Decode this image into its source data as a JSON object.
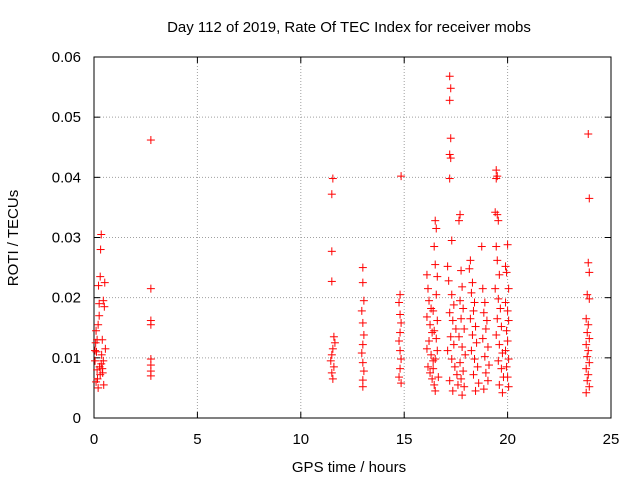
{
  "chart_data": {
    "type": "scatter",
    "title": "Day 112 of 2019, Rate Of TEC Index for receiver mobs",
    "xlabel": "GPS time / hours",
    "ylabel": "ROTI / TECUs",
    "xlim": [
      0,
      25
    ],
    "ylim": [
      0,
      0.06
    ],
    "x_ticks": [
      0,
      5,
      10,
      15,
      20,
      25
    ],
    "y_ticks": [
      0,
      0.01,
      0.02,
      0.03,
      0.04,
      0.05,
      0.06
    ],
    "x_tick_labels": [
      "0",
      "5",
      "10",
      "15",
      "20",
      "25"
    ],
    "y_tick_labels": [
      "0",
      "0.01",
      "0.02",
      "0.03",
      "0.04",
      "0.05",
      "0.06"
    ],
    "grid": true,
    "marker": "+",
    "color": "#ff0000",
    "series": [
      {
        "name": "ROTI",
        "points": [
          [
            0.05,
            0.0095
          ],
          [
            0.08,
            0.0125
          ],
          [
            0.1,
            0.0145
          ],
          [
            0.12,
            0.011
          ],
          [
            0.15,
            0.008
          ],
          [
            0.17,
            0.0065
          ],
          [
            0.2,
            0.0155
          ],
          [
            0.22,
            0.022
          ],
          [
            0.25,
            0.019
          ],
          [
            0.27,
            0.0085
          ],
          [
            0.3,
            0.0235
          ],
          [
            0.32,
            0.028
          ],
          [
            0.35,
            0.0305
          ],
          [
            0.37,
            0.0105
          ],
          [
            0.4,
            0.013
          ],
          [
            0.42,
            0.0075
          ],
          [
            0.45,
            0.0095
          ],
          [
            0.47,
            0.0055
          ],
          [
            0.5,
            0.0185
          ],
          [
            0.52,
            0.0225
          ],
          [
            0.55,
            0.0115
          ],
          [
            0.1,
            0.006
          ],
          [
            0.2,
            0.005
          ],
          [
            0.3,
            0.0072
          ],
          [
            0.15,
            0.013
          ],
          [
            0.25,
            0.017
          ],
          [
            0.35,
            0.009
          ],
          [
            0.45,
            0.0195
          ],
          [
            0.05,
            0.0112
          ],
          [
            0.4,
            0.0082
          ],
          [
            2.75,
            0.0462
          ],
          [
            2.75,
            0.0215
          ],
          [
            2.75,
            0.0162
          ],
          [
            2.75,
            0.0155
          ],
          [
            2.75,
            0.0098
          ],
          [
            2.75,
            0.0088
          ],
          [
            2.75,
            0.0078
          ],
          [
            2.75,
            0.007
          ],
          [
            11.55,
            0.0398
          ],
          [
            11.5,
            0.0372
          ],
          [
            11.5,
            0.0277
          ],
          [
            11.5,
            0.0227
          ],
          [
            11.6,
            0.0135
          ],
          [
            11.55,
            0.0115
          ],
          [
            11.5,
            0.0105
          ],
          [
            11.45,
            0.0095
          ],
          [
            11.6,
            0.0085
          ],
          [
            11.5,
            0.0075
          ],
          [
            11.55,
            0.0065
          ],
          [
            11.65,
            0.0125
          ],
          [
            13.0,
            0.025
          ],
          [
            13.0,
            0.0225
          ],
          [
            13.05,
            0.0195
          ],
          [
            12.95,
            0.0178
          ],
          [
            13.0,
            0.0158
          ],
          [
            13.05,
            0.0138
          ],
          [
            13.0,
            0.0122
          ],
          [
            12.95,
            0.0108
          ],
          [
            13.0,
            0.0092
          ],
          [
            13.05,
            0.0078
          ],
          [
            13.0,
            0.0063
          ],
          [
            13.0,
            0.0052
          ],
          [
            14.85,
            0.0402
          ],
          [
            14.8,
            0.0205
          ],
          [
            14.75,
            0.0192
          ],
          [
            14.8,
            0.0172
          ],
          [
            14.85,
            0.0158
          ],
          [
            14.8,
            0.0142
          ],
          [
            14.75,
            0.0128
          ],
          [
            14.8,
            0.0112
          ],
          [
            14.85,
            0.0098
          ],
          [
            14.8,
            0.0082
          ],
          [
            14.75,
            0.0068
          ],
          [
            14.85,
            0.0058
          ],
          [
            16.1,
            0.0238
          ],
          [
            16.15,
            0.0215
          ],
          [
            16.2,
            0.0195
          ],
          [
            16.3,
            0.0182
          ],
          [
            16.1,
            0.0168
          ],
          [
            16.25,
            0.0155
          ],
          [
            16.35,
            0.0142
          ],
          [
            16.2,
            0.0128
          ],
          [
            16.1,
            0.0115
          ],
          [
            16.3,
            0.0105
          ],
          [
            16.4,
            0.0095
          ],
          [
            16.15,
            0.0085
          ],
          [
            16.25,
            0.0075
          ],
          [
            16.35,
            0.0065
          ],
          [
            16.45,
            0.0055
          ],
          [
            16.5,
            0.0045
          ],
          [
            16.5,
            0.0328
          ],
          [
            16.55,
            0.0315
          ],
          [
            16.45,
            0.0285
          ],
          [
            16.5,
            0.0255
          ],
          [
            16.6,
            0.0235
          ],
          [
            16.55,
            0.0205
          ],
          [
            16.4,
            0.0178
          ],
          [
            16.6,
            0.0162
          ],
          [
            16.45,
            0.0145
          ],
          [
            16.55,
            0.0132
          ],
          [
            16.6,
            0.0112
          ],
          [
            16.5,
            0.0098
          ],
          [
            16.4,
            0.0082
          ],
          [
            16.65,
            0.0068
          ],
          [
            17.2,
            0.0568
          ],
          [
            17.25,
            0.0548
          ],
          [
            17.2,
            0.0528
          ],
          [
            17.25,
            0.0465
          ],
          [
            17.2,
            0.0438
          ],
          [
            17.25,
            0.0432
          ],
          [
            17.2,
            0.0398
          ],
          [
            17.3,
            0.0295
          ],
          [
            17.1,
            0.0252
          ],
          [
            17.15,
            0.0228
          ],
          [
            17.3,
            0.0205
          ],
          [
            17.4,
            0.0188
          ],
          [
            17.2,
            0.0175
          ],
          [
            17.35,
            0.0162
          ],
          [
            17.5,
            0.0148
          ],
          [
            17.25,
            0.0135
          ],
          [
            17.4,
            0.0122
          ],
          [
            17.1,
            0.0112
          ],
          [
            17.3,
            0.0098
          ],
          [
            17.45,
            0.0085
          ],
          [
            17.55,
            0.0072
          ],
          [
            17.2,
            0.0062
          ],
          [
            17.6,
            0.0055
          ],
          [
            17.35,
            0.0045
          ],
          [
            17.7,
            0.0338
          ],
          [
            17.65,
            0.0328
          ],
          [
            17.75,
            0.0245
          ],
          [
            17.8,
            0.0218
          ],
          [
            17.7,
            0.0195
          ],
          [
            17.85,
            0.0182
          ],
          [
            17.75,
            0.0165
          ],
          [
            17.9,
            0.0148
          ],
          [
            17.65,
            0.0135
          ],
          [
            17.8,
            0.0118
          ],
          [
            17.95,
            0.0105
          ],
          [
            17.7,
            0.0092
          ],
          [
            17.85,
            0.0078
          ],
          [
            17.75,
            0.0065
          ],
          [
            17.9,
            0.0052
          ],
          [
            17.8,
            0.0038
          ],
          [
            18.2,
            0.0262
          ],
          [
            18.15,
            0.0248
          ],
          [
            18.3,
            0.0225
          ],
          [
            18.25,
            0.0208
          ],
          [
            18.4,
            0.0192
          ],
          [
            18.35,
            0.0178
          ],
          [
            18.2,
            0.0165
          ],
          [
            18.45,
            0.0152
          ],
          [
            18.3,
            0.0138
          ],
          [
            18.5,
            0.0125
          ],
          [
            18.25,
            0.0112
          ],
          [
            18.4,
            0.0098
          ],
          [
            18.55,
            0.0085
          ],
          [
            18.35,
            0.0072
          ],
          [
            18.6,
            0.0058
          ],
          [
            18.45,
            0.0045
          ],
          [
            18.75,
            0.0285
          ],
          [
            18.8,
            0.0215
          ],
          [
            18.9,
            0.0192
          ],
          [
            18.85,
            0.0175
          ],
          [
            19.0,
            0.0162
          ],
          [
            18.95,
            0.0148
          ],
          [
            18.8,
            0.0132
          ],
          [
            19.05,
            0.0118
          ],
          [
            18.9,
            0.0102
          ],
          [
            19.1,
            0.0088
          ],
          [
            18.95,
            0.0075
          ],
          [
            19.05,
            0.0062
          ],
          [
            18.85,
            0.0048
          ],
          [
            19.45,
            0.0412
          ],
          [
            19.5,
            0.0402
          ],
          [
            19.45,
            0.0398
          ],
          [
            19.4,
            0.0342
          ],
          [
            19.5,
            0.0338
          ],
          [
            19.55,
            0.0328
          ],
          [
            19.45,
            0.0285
          ],
          [
            19.5,
            0.0262
          ],
          [
            19.6,
            0.0238
          ],
          [
            19.4,
            0.0215
          ],
          [
            19.55,
            0.0198
          ],
          [
            19.65,
            0.0182
          ],
          [
            19.5,
            0.0165
          ],
          [
            19.7,
            0.0152
          ],
          [
            19.45,
            0.0138
          ],
          [
            19.6,
            0.0122
          ],
          [
            19.75,
            0.0108
          ],
          [
            19.55,
            0.0095
          ],
          [
            19.7,
            0.0082
          ],
          [
            19.8,
            0.0068
          ],
          [
            19.6,
            0.0055
          ],
          [
            19.75,
            0.0042
          ],
          [
            19.9,
            0.0252
          ],
          [
            20.0,
            0.0288
          ],
          [
            19.95,
            0.0242
          ],
          [
            20.05,
            0.0215
          ],
          [
            19.9,
            0.0192
          ],
          [
            20.0,
            0.0178
          ],
          [
            20.05,
            0.0162
          ],
          [
            19.95,
            0.0145
          ],
          [
            20.0,
            0.0128
          ],
          [
            19.9,
            0.0112
          ],
          [
            20.05,
            0.0098
          ],
          [
            19.95,
            0.0085
          ],
          [
            20.0,
            0.0068
          ],
          [
            20.05,
            0.0052
          ],
          [
            23.9,
            0.0472
          ],
          [
            23.95,
            0.0365
          ],
          [
            23.9,
            0.0258
          ],
          [
            23.95,
            0.0242
          ],
          [
            23.85,
            0.0205
          ],
          [
            23.95,
            0.0198
          ],
          [
            23.8,
            0.0165
          ],
          [
            23.9,
            0.0155
          ],
          [
            23.85,
            0.0142
          ],
          [
            23.95,
            0.0132
          ],
          [
            23.8,
            0.0122
          ],
          [
            23.9,
            0.0112
          ],
          [
            23.85,
            0.0102
          ],
          [
            23.95,
            0.0092
          ],
          [
            23.8,
            0.0082
          ],
          [
            23.9,
            0.0072
          ],
          [
            23.85,
            0.0062
          ],
          [
            23.95,
            0.0052
          ],
          [
            23.8,
            0.0042
          ]
        ]
      }
    ]
  }
}
